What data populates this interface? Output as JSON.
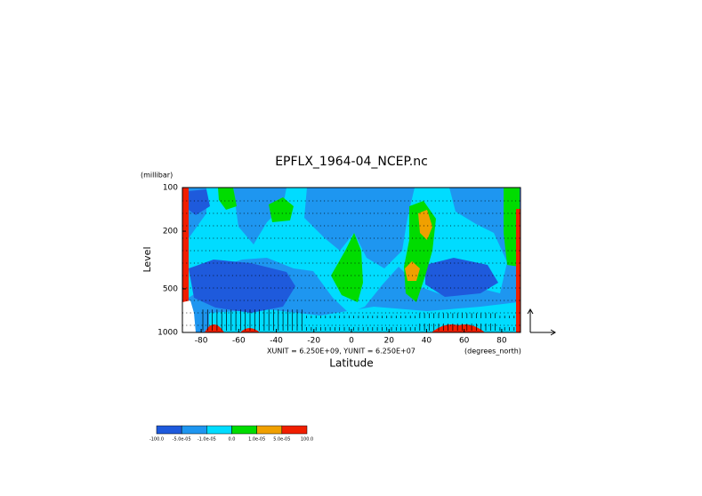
{
  "chart_data": {
    "type": "contour",
    "title": "EPFLX_1964-04_NCEP.nc",
    "y_unit": "(millibar)",
    "y_label": "Level",
    "x_label": "Latitude",
    "x_unit": "(degrees_north)",
    "vector_units": "XUNIT = 6.250E+09, YUNIT = 6.250E+07",
    "xlim": [
      -90,
      90
    ],
    "xticks": [
      -80,
      -60,
      -40,
      -20,
      0,
      20,
      40,
      60,
      80
    ],
    "ylim": [
      1000,
      100
    ],
    "yscale": "log",
    "yticks": [
      100,
      200,
      500,
      1000
    ],
    "levels": [
      {
        "value": -100,
        "label": "-100.0"
      },
      {
        "value": -5e-05,
        "label": "-5.0e-05"
      },
      {
        "value": -1e-05,
        "label": "-1.0e-05"
      },
      {
        "value": 0,
        "label": "0.0"
      },
      {
        "value": 1e-05,
        "label": "1.0e-05"
      },
      {
        "value": 5e-05,
        "label": "5.0e-05"
      },
      {
        "value": 100,
        "label": "100.0"
      }
    ],
    "colors": [
      "#1e5adc",
      "#1e96f0",
      "#00dcff",
      "#00dc00",
      "#f0a000",
      "#f01e00"
    ]
  }
}
